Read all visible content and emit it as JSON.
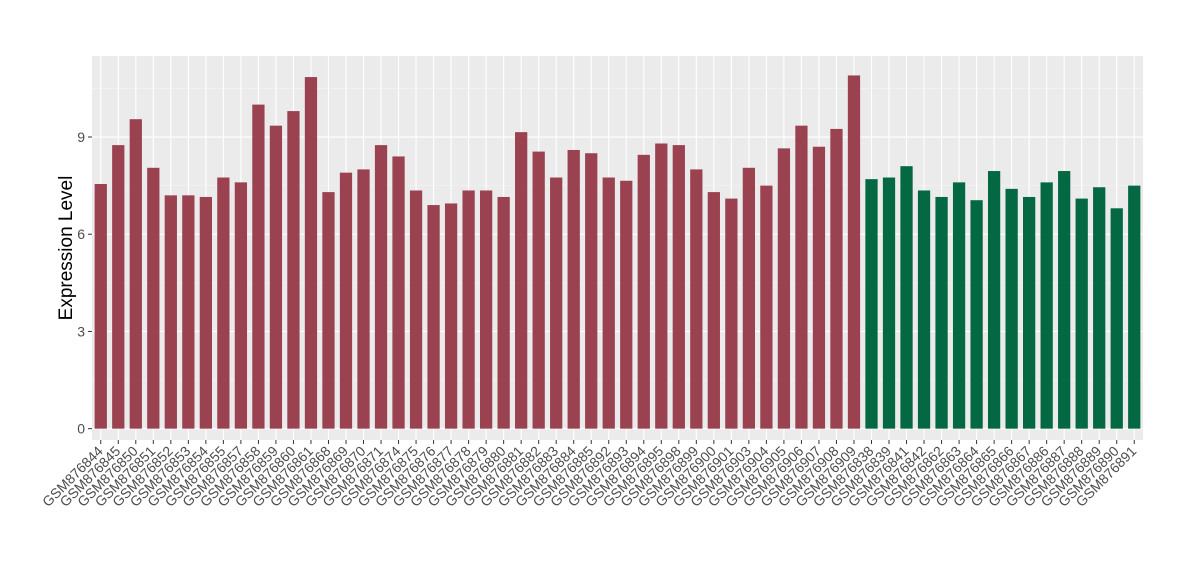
{
  "chart_data": {
    "type": "bar",
    "title": "",
    "xlabel": "",
    "ylabel": "Expression Level",
    "ylim": [
      -0.35,
      11.5
    ],
    "yticks": [
      0,
      3,
      6,
      9
    ],
    "grid": true,
    "legend": "none",
    "colors": {
      "group1": "#9a4250",
      "group2": "#046842"
    },
    "categories": [
      "GSM876844",
      "GSM876845",
      "GSM876850",
      "GSM876851",
      "GSM876852",
      "GSM876853",
      "GSM876854",
      "GSM876855",
      "GSM876857",
      "GSM876858",
      "GSM876859",
      "GSM876860",
      "GSM876861",
      "GSM876868",
      "GSM876869",
      "GSM876870",
      "GSM876871",
      "GSM876874",
      "GSM876875",
      "GSM876876",
      "GSM876877",
      "GSM876878",
      "GSM876879",
      "GSM876880",
      "GSM876881",
      "GSM876882",
      "GSM876883",
      "GSM876884",
      "GSM876885",
      "GSM876892",
      "GSM876893",
      "GSM876894",
      "GSM876895",
      "GSM876898",
      "GSM876899",
      "GSM876900",
      "GSM876901",
      "GSM876903",
      "GSM876904",
      "GSM876905",
      "GSM876906",
      "GSM876907",
      "GSM876908",
      "GSM876909",
      "GSM876838",
      "GSM876839",
      "GSM876841",
      "GSM876842",
      "GSM876862",
      "GSM876863",
      "GSM876864",
      "GSM876865",
      "GSM876866",
      "GSM876867",
      "GSM876886",
      "GSM876887",
      "GSM876888",
      "GSM876889",
      "GSM876890",
      "GSM876891"
    ],
    "values": [
      7.55,
      8.75,
      9.55,
      8.05,
      7.2,
      7.2,
      7.15,
      7.75,
      7.6,
      10.0,
      9.35,
      9.8,
      10.85,
      7.3,
      7.9,
      8.0,
      8.75,
      8.4,
      7.35,
      6.9,
      6.95,
      7.35,
      7.35,
      7.15,
      9.15,
      8.55,
      7.75,
      8.6,
      8.5,
      7.75,
      7.65,
      8.45,
      8.8,
      8.75,
      8.0,
      7.3,
      7.1,
      8.05,
      7.5,
      8.65,
      9.35,
      8.7,
      9.25,
      10.9,
      7.7,
      7.75,
      8.1,
      7.35,
      7.15,
      7.6,
      7.05,
      7.95,
      7.4,
      7.15,
      7.6,
      7.95,
      7.1,
      7.45,
      6.8,
      7.5
    ],
    "groups": [
      1,
      1,
      1,
      1,
      1,
      1,
      1,
      1,
      1,
      1,
      1,
      1,
      1,
      1,
      1,
      1,
      1,
      1,
      1,
      1,
      1,
      1,
      1,
      1,
      1,
      1,
      1,
      1,
      1,
      1,
      1,
      1,
      1,
      1,
      1,
      1,
      1,
      1,
      1,
      1,
      1,
      1,
      1,
      1,
      2,
      2,
      2,
      2,
      2,
      2,
      2,
      2,
      2,
      2,
      2,
      2,
      2,
      2,
      2,
      2
    ]
  }
}
